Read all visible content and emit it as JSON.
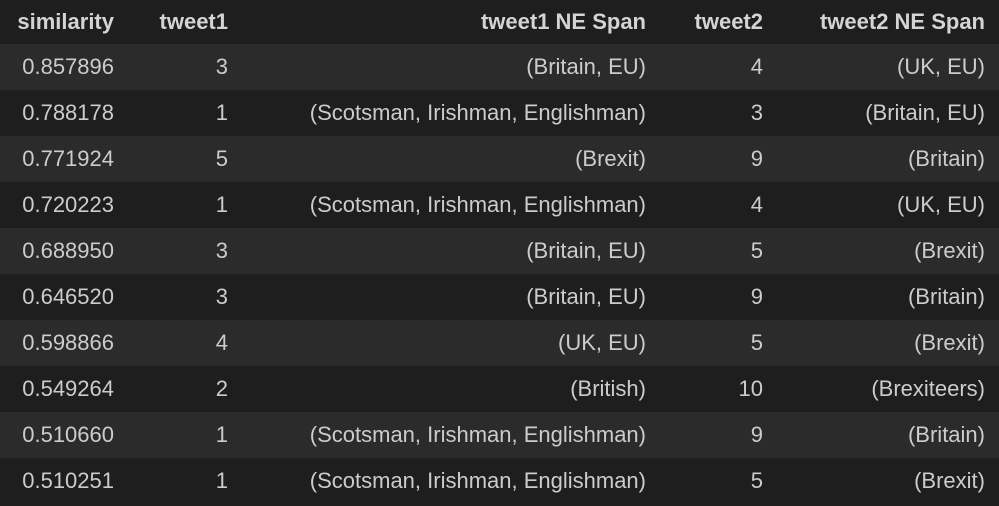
{
  "columns": [
    "similarity",
    "tweet1",
    "tweet1 NE Span",
    "tweet2",
    "tweet2 NE Span"
  ],
  "rows": [
    [
      "0.857896",
      "3",
      "(Britain, EU)",
      "4",
      "(UK, EU)"
    ],
    [
      "0.788178",
      "1",
      "(Scotsman, Irishman, Englishman)",
      "3",
      "(Britain, EU)"
    ],
    [
      "0.771924",
      "5",
      "(Brexit)",
      "9",
      "(Britain)"
    ],
    [
      "0.720223",
      "1",
      "(Scotsman, Irishman, Englishman)",
      "4",
      "(UK, EU)"
    ],
    [
      "0.688950",
      "3",
      "(Britain, EU)",
      "5",
      "(Brexit)"
    ],
    [
      "0.646520",
      "3",
      "(Britain, EU)",
      "9",
      "(Britain)"
    ],
    [
      "0.598866",
      "4",
      "(UK, EU)",
      "5",
      "(Brexit)"
    ],
    [
      "0.549264",
      "2",
      "(British)",
      "10",
      "(Brexiteers)"
    ],
    [
      "0.510660",
      "1",
      "(Scotsman, Irishman, Englishman)",
      "9",
      "(Britain)"
    ],
    [
      "0.510251",
      "1",
      "(Scotsman, Irishman, Englishman)",
      "5",
      "(Brexit)"
    ]
  ],
  "colors": {
    "background": "#1e1e1e",
    "row_stripe": "#2b2b2b",
    "text": "#cccccc"
  }
}
